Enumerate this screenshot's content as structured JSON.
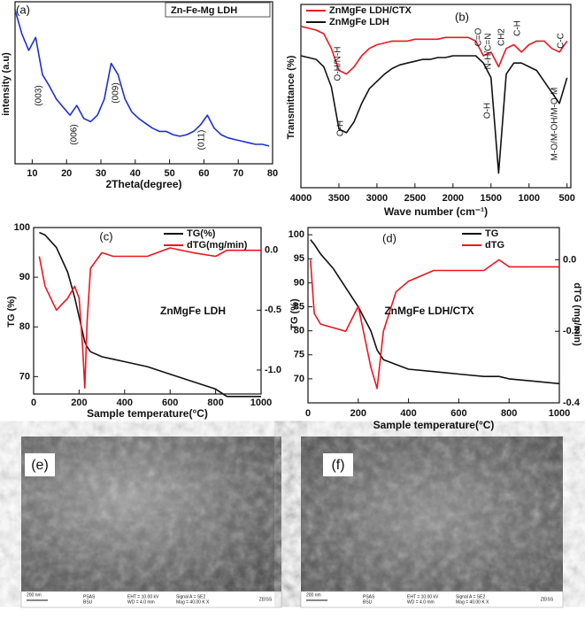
{
  "chart_data": [
    {
      "type": "line",
      "panel_label": "(a)",
      "xlabel": "2Theta(degree)",
      "ylabel": "intensity (a.u)",
      "annotations": [
        "(003)",
        "(006)",
        "(009)",
        "(011)"
      ],
      "legend": "upper right",
      "legend_box": true,
      "xlim": [
        5,
        80
      ],
      "xticks": [
        10,
        20,
        30,
        40,
        50,
        60,
        70,
        80
      ],
      "ylim": [
        0,
        100
      ],
      "x": [
        5,
        7,
        9,
        11,
        13,
        15,
        17,
        19,
        21,
        23,
        25,
        27,
        29,
        31,
        33,
        35,
        37,
        39,
        41,
        43,
        45,
        47,
        49,
        51,
        53,
        55,
        57,
        59,
        61,
        63,
        65,
        67,
        69,
        71,
        73,
        75,
        77,
        79
      ],
      "series": [
        {
          "name": "Zn-Fe-Mg LDH",
          "color": "#1f2fd6",
          "values": [
            95,
            80,
            70,
            78,
            55,
            48,
            40,
            35,
            30,
            36,
            28,
            26,
            30,
            40,
            62,
            55,
            40,
            32,
            28,
            25,
            22,
            20,
            20,
            18,
            17,
            18,
            20,
            24,
            30,
            22,
            18,
            16,
            15,
            14,
            13,
            12,
            12,
            11
          ]
        }
      ]
    },
    {
      "type": "line",
      "panel_label": "(b)",
      "xlabel": "Wave number (cm⁻¹)",
      "ylabel": "Transmittance (%)",
      "annotations": [
        "C=O",
        "N-H/C=N",
        "CH2",
        "C-H",
        "C-C",
        "O-H/N-H",
        "O-H",
        "O-H",
        "M-O/M-OH/M-O-M"
      ],
      "legend": "upper left",
      "legend_box": false,
      "xlim": [
        4000,
        450
      ],
      "xticks": [
        4000,
        3500,
        3000,
        2500,
        2000,
        1500,
        1000,
        500
      ],
      "ylim": [
        0,
        100
      ],
      "x": [
        4000,
        3900,
        3800,
        3700,
        3600,
        3500,
        3400,
        3300,
        3200,
        3100,
        3000,
        2900,
        2800,
        2700,
        2600,
        2500,
        2400,
        2300,
        2200,
        2100,
        2000,
        1900,
        1800,
        1700,
        1600,
        1500,
        1400,
        1300,
        1200,
        1100,
        1000,
        900,
        800,
        700,
        600,
        500
      ],
      "series": [
        {
          "name": "ZnMgFe LDH/CTX",
          "color": "#f0141e",
          "values": [
            88,
            87,
            86,
            84,
            76,
            64,
            62,
            66,
            72,
            76,
            78,
            79,
            80,
            80,
            80,
            81,
            81,
            81,
            81,
            82,
            82,
            82,
            82,
            80,
            72,
            74,
            66,
            76,
            78,
            74,
            78,
            80,
            80,
            76,
            74,
            80
          ]
        },
        {
          "name": "ZnMgFe LDH",
          "color": "#111111",
          "values": [
            72,
            71,
            70,
            66,
            55,
            32,
            30,
            36,
            46,
            54,
            58,
            62,
            65,
            67,
            68,
            69,
            70,
            70,
            71,
            71,
            72,
            72,
            72,
            72,
            68,
            60,
            8,
            62,
            68,
            68,
            66,
            64,
            58,
            52,
            46,
            60
          ]
        }
      ]
    },
    {
      "type": "line",
      "panel_label": "(c)",
      "xlabel": "Sample temperature(°C)",
      "ylabel": "TG (%)",
      "annotations": [
        "ZnMgFe LDH"
      ],
      "legend": "upper right",
      "legend_box": false,
      "xlim": [
        0,
        1000
      ],
      "xticks": [
        0,
        200,
        400,
        600,
        800,
        1000
      ],
      "ylim": [
        66.5,
        100
      ],
      "yticks": [
        70,
        80,
        90,
        100
      ],
      "y2lim": [
        -1.2,
        0.19
      ],
      "y2ticks": [
        {
          "value": 0,
          "label": "0.0"
        },
        -0.5,
        {
          "value": -1,
          "label": "-1.0"
        }
      ],
      "x": [
        25,
        50,
        100,
        150,
        180,
        200,
        215,
        225,
        235,
        250,
        300,
        350,
        400,
        500,
        600,
        700,
        800,
        850,
        900,
        1000
      ],
      "series": [
        {
          "name": "TG(%)",
          "color": "#111111",
          "values": [
            99,
            98.5,
            96,
            91,
            86,
            82,
            79,
            77,
            76,
            75,
            74,
            73.5,
            73,
            72,
            70.5,
            69,
            67.5,
            66,
            66,
            66
          ]
        },
        {
          "name": "dTG(mg/min)",
          "color": "#f0141e",
          "axis": "y2",
          "values": [
            -0.05,
            -0.3,
            -0.5,
            -0.4,
            -0.3,
            -0.4,
            -0.8,
            -1.15,
            -0.6,
            -0.15,
            -0.02,
            -0.05,
            -0.05,
            -0.05,
            0.02,
            -0.02,
            -0.05,
            0,
            0,
            0
          ]
        }
      ]
    },
    {
      "type": "line",
      "panel_label": "(d)",
      "xlabel": "Sample temperature(°C)",
      "ylabel": "TG (%)",
      "y2label": "dTG (mg/min)",
      "annotations": [
        "ZnMgFe LDH/CTX"
      ],
      "legend": "upper right",
      "legend_box": false,
      "xlim": [
        0,
        1000
      ],
      "xticks": [
        0,
        200,
        400,
        600,
        800,
        1000
      ],
      "ylim": [
        65,
        101.5
      ],
      "yticks": [
        70,
        75,
        80,
        85,
        90,
        95,
        100
      ],
      "y2lim": [
        -0.4,
        0.09
      ],
      "y2ticks": [
        {
          "value": 0,
          "label": "0.0"
        },
        -0.2,
        -0.4
      ],
      "x": [
        10,
        25,
        50,
        100,
        150,
        200,
        250,
        275,
        300,
        350,
        400,
        500,
        600,
        700,
        760,
        800,
        900,
        1000
      ],
      "series": [
        {
          "name": "TG",
          "color": "#111111",
          "values": [
            99,
            98,
            96,
            93,
            89,
            85,
            80,
            76,
            74,
            73,
            72,
            71.5,
            71,
            70.5,
            70.5,
            70,
            69.5,
            69
          ]
        },
        {
          "name": "dTG",
          "color": "#f0141e",
          "axis": "y2",
          "values": [
            0,
            -0.15,
            -0.18,
            -0.19,
            -0.2,
            -0.13,
            -0.3,
            -0.36,
            -0.2,
            -0.09,
            -0.06,
            -0.03,
            -0.03,
            -0.03,
            0,
            -0.02,
            -0.02,
            -0.02
          ]
        }
      ]
    }
  ],
  "images": [
    {
      "label": "(e)",
      "footer": [
        "200 nm",
        "PSAS",
        "BSU",
        "EHT = 10.00 kV",
        "WD = 4.0 mm",
        "Signal A = SE2",
        "Mag = 40.00 K X",
        "ZEISS"
      ]
    },
    {
      "label": "(f)",
      "footer": [
        "200 nm",
        "PSAS",
        "BSU",
        "EHT = 10.00 kV",
        "WD = 4.0 mm",
        "Signal A = SE2",
        "Mag = 40.00 K X",
        "ZEISS"
      ]
    }
  ]
}
